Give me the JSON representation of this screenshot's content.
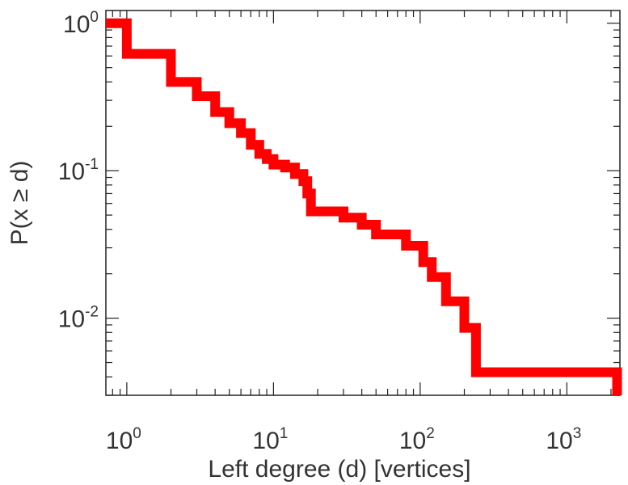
{
  "chart_data": {
    "type": "line",
    "step": true,
    "xlabel": "Left degree (d) [vertices]",
    "ylabel": "P(x ≥ d)",
    "xscale": "log",
    "yscale": "log",
    "xlim": [
      0.72,
      2300
    ],
    "ylim": [
      0.003,
      1.22
    ],
    "grid": false,
    "legend": "none",
    "xticks": [
      {
        "value": 1,
        "base": "10",
        "exp": "0"
      },
      {
        "value": 10,
        "base": "10",
        "exp": "1"
      },
      {
        "value": 100,
        "base": "10",
        "exp": "2"
      },
      {
        "value": 1000,
        "base": "10",
        "exp": "3"
      }
    ],
    "yticks": [
      {
        "value": 1,
        "base": "10",
        "exp": "0"
      },
      {
        "value": 0.1,
        "base": "10",
        "exp": "-1"
      },
      {
        "value": 0.01,
        "base": "10",
        "exp": "-2"
      }
    ],
    "series": [
      {
        "color": "#ff0000",
        "x": [
          0.72,
          1,
          2,
          3,
          4,
          5,
          6,
          7,
          8,
          9,
          10,
          12,
          14,
          16,
          17,
          18,
          30,
          40,
          50,
          80,
          105,
          120,
          150,
          200,
          240,
          2200
        ],
        "y": [
          1.0,
          0.62,
          0.4,
          0.32,
          0.25,
          0.21,
          0.18,
          0.15,
          0.13,
          0.12,
          0.11,
          0.105,
          0.095,
          0.085,
          0.07,
          0.053,
          0.048,
          0.043,
          0.037,
          0.031,
          0.024,
          0.019,
          0.013,
          0.0086,
          0.0043,
          0.0043
        ],
        "end_y": 0.003
      }
    ]
  }
}
